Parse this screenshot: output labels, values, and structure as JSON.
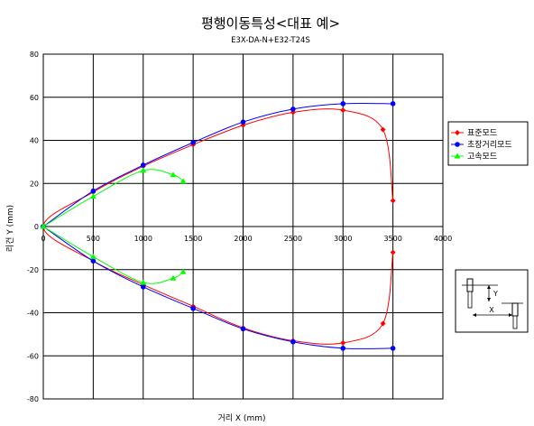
{
  "chart_data": {
    "type": "line",
    "title": "평행이동특성<대표  예>",
    "subtitle": "E3X-DA-N+E32-T24S",
    "xlabel": "거리 X (mm)",
    "ylabel": "리건  Y  (mm)",
    "xlim": [
      0,
      4000
    ],
    "ylim": [
      -80,
      80
    ],
    "x_ticks": [
      0,
      500,
      1000,
      1500,
      2000,
      2500,
      3000,
      3500,
      4000
    ],
    "y_ticks": [
      80,
      60,
      40,
      20,
      0,
      -20,
      -40,
      -60,
      -80
    ],
    "grid": true,
    "legend_position": "right",
    "series": [
      {
        "name": "표준모드",
        "color": "#ff0000",
        "marker": "diamond",
        "upper": [
          [
            0,
            0
          ],
          [
            500,
            16
          ],
          [
            1000,
            28
          ],
          [
            1500,
            38
          ],
          [
            2000,
            47
          ],
          [
            2500,
            53
          ],
          [
            3000,
            54
          ],
          [
            3400,
            45
          ],
          [
            3500,
            12
          ]
        ],
        "lower": [
          [
            0,
            0
          ],
          [
            500,
            -16
          ],
          [
            1000,
            -27
          ],
          [
            1500,
            -37
          ],
          [
            2000,
            -47
          ],
          [
            2500,
            -53
          ],
          [
            3000,
            -54
          ],
          [
            3400,
            -45
          ],
          [
            3500,
            -12
          ]
        ]
      },
      {
        "name": "초장거리모드",
        "color": "#0000ff",
        "marker": "circle",
        "upper": [
          [
            0,
            0
          ],
          [
            500,
            16.5
          ],
          [
            1000,
            28.5
          ],
          [
            1500,
            39
          ],
          [
            2000,
            48.5
          ],
          [
            2500,
            54.5
          ],
          [
            3000,
            57
          ],
          [
            3500,
            57
          ]
        ],
        "lower": [
          [
            0,
            0
          ],
          [
            500,
            -16
          ],
          [
            1000,
            -28
          ],
          [
            1500,
            -38
          ],
          [
            2000,
            -47.5
          ],
          [
            2500,
            -53.5
          ],
          [
            3000,
            -56.5
          ],
          [
            3500,
            -56.5
          ]
        ]
      },
      {
        "name": "고속모드",
        "color": "#00ff00",
        "marker": "triangle",
        "upper": [
          [
            0,
            0
          ],
          [
            500,
            14
          ],
          [
            1000,
            26
          ],
          [
            1300,
            24
          ],
          [
            1400,
            21
          ]
        ],
        "lower": [
          [
            0,
            0
          ],
          [
            500,
            -14
          ],
          [
            1000,
            -26
          ],
          [
            1300,
            -24
          ],
          [
            1400,
            -21
          ]
        ]
      }
    ]
  },
  "diagram": {
    "y_label": "Y",
    "x_label": "X"
  }
}
